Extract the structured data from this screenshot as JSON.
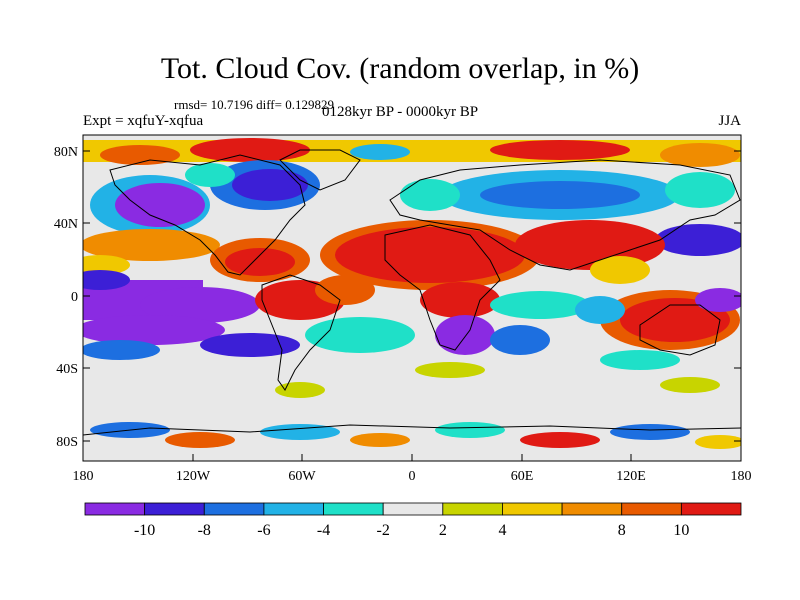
{
  "title": "Tot. Cloud Cov. (random overlap, in %)",
  "stats": "rmsd= 10.7196  diff= 0.129829",
  "left_label": "Expt = xqfuY-xqfua",
  "center_label": "0128kyr BP - 0000kyr BP",
  "right_label": "JJA",
  "map": {
    "lat_labels": [
      "80N",
      "40N",
      "0",
      "40S",
      "80S"
    ],
    "lon_labels": [
      "180",
      "120W",
      "60W",
      "0",
      "60E",
      "120E",
      "180"
    ]
  },
  "colorbar": {
    "colors": [
      "#8a2be2",
      "#3c1fd6",
      "#1d6fe0",
      "#22b2e6",
      "#1fe0c8",
      "#e8e8e8",
      "#c8d400",
      "#f0c800",
      "#f08c00",
      "#e85a00",
      "#e01a14"
    ],
    "labels": [
      "-10",
      "-8",
      "-6",
      "-4",
      "-2",
      "2",
      "4",
      "8",
      "10"
    ]
  }
}
